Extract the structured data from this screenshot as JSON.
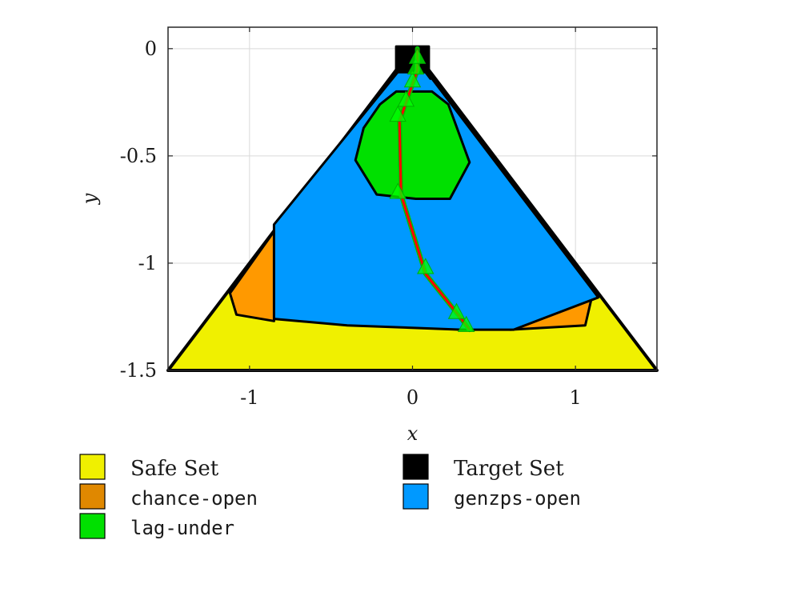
{
  "chart_data": {
    "type": "area",
    "title": "",
    "xlabel": "x",
    "ylabel": "y",
    "xlim": [
      -1.5,
      1.5
    ],
    "ylim": [
      -1.5,
      0.1
    ],
    "xticks": [
      {
        "value": -1,
        "label": "-1"
      },
      {
        "value": 0,
        "label": "0"
      },
      {
        "value": 1,
        "label": "1"
      }
    ],
    "yticks": [
      {
        "value": 0,
        "label": "0"
      },
      {
        "value": -0.5,
        "label": "-0.5"
      },
      {
        "value": -1,
        "label": "-1"
      },
      {
        "value": -1.5,
        "label": "-1.5"
      }
    ],
    "grid": true,
    "legend_position": "bottom",
    "regions": [
      {
        "name": "Safe Set",
        "color": "#f0f000",
        "points": [
          [
            -1.5,
            -1.5
          ],
          [
            0,
            0
          ],
          [
            1.5,
            -1.5
          ]
        ]
      },
      {
        "name": "chance-open",
        "color": "#ff9900",
        "points": [
          [
            -1.12,
            -1.14
          ],
          [
            -0.82,
            -0.82
          ],
          [
            -0.85,
            -1.27
          ],
          [
            -1.08,
            -1.24
          ]
        ]
      },
      {
        "name": "chance-open",
        "color": "#ff9900",
        "points": [
          [
            0.6,
            -1.31
          ],
          [
            1.06,
            -1.29
          ],
          [
            1.1,
            -1.16
          ]
        ]
      },
      {
        "name": "genzps-open",
        "color": "#0099ff",
        "points": [
          [
            -0.85,
            -0.82
          ],
          [
            -0.08,
            -0.1
          ],
          [
            0,
            -0.04
          ],
          [
            0.04,
            -0.06
          ],
          [
            1.14,
            -1.16
          ],
          [
            0.62,
            -1.31
          ],
          [
            0.3,
            -1.31
          ],
          [
            -0.4,
            -1.29
          ],
          [
            -0.85,
            -1.26
          ]
        ]
      },
      {
        "name": "chance-open",
        "color": "#ff9900",
        "points": [
          [
            0.04,
            -0.06
          ],
          [
            0.06,
            -0.09
          ],
          [
            0.11,
            -0.14
          ],
          [
            0.09,
            -0.1
          ]
        ]
      },
      {
        "name": "lag-under",
        "color": "#00e000",
        "points": [
          [
            -0.1,
            -0.2
          ],
          [
            0.12,
            -0.2
          ],
          [
            0.22,
            -0.26
          ],
          [
            0.35,
            -0.53
          ],
          [
            0.23,
            -0.7
          ],
          [
            0.02,
            -0.7
          ],
          [
            -0.22,
            -0.68
          ],
          [
            -0.35,
            -0.52
          ],
          [
            -0.3,
            -0.37
          ],
          [
            -0.2,
            -0.26
          ]
        ]
      },
      {
        "name": "Target Set",
        "color": "#000000",
        "points": [
          [
            -0.1,
            0.01
          ],
          [
            0.1,
            0.01
          ],
          [
            0.1,
            -0.11
          ],
          [
            -0.1,
            -0.11
          ]
        ]
      }
    ],
    "trajectory": {
      "color": "#ff0000",
      "points": [
        [
          0.35,
          -1.31
        ],
        [
          0.29,
          -1.25
        ],
        [
          0.08,
          -1.05
        ],
        [
          -0.07,
          -0.68
        ],
        [
          -0.08,
          -0.34
        ],
        [
          0.03,
          -0.1
        ],
        [
          0.03,
          0.0
        ]
      ]
    },
    "markers": {
      "color": "#00ff00",
      "points": [
        [
          0.33,
          -1.29
        ],
        [
          0.27,
          -1.23
        ],
        [
          0.08,
          -1.02
        ],
        [
          -0.09,
          -0.67
        ],
        [
          -0.09,
          -0.31
        ],
        [
          -0.04,
          -0.24
        ],
        [
          0.0,
          -0.15
        ],
        [
          0.02,
          -0.09
        ],
        [
          0.03,
          -0.04
        ]
      ]
    },
    "legend": [
      {
        "label": "Safe Set",
        "color": "#f0f000",
        "style": "serif"
      },
      {
        "label": "chance-open",
        "color": "#e08800",
        "style": "mono"
      },
      {
        "label": "lag-under",
        "color": "#00e000",
        "style": "mono"
      },
      {
        "label": "Target Set",
        "color": "#000000",
        "style": "serif"
      },
      {
        "label": "genzps-open",
        "color": "#0099ff",
        "style": "mono"
      }
    ]
  }
}
